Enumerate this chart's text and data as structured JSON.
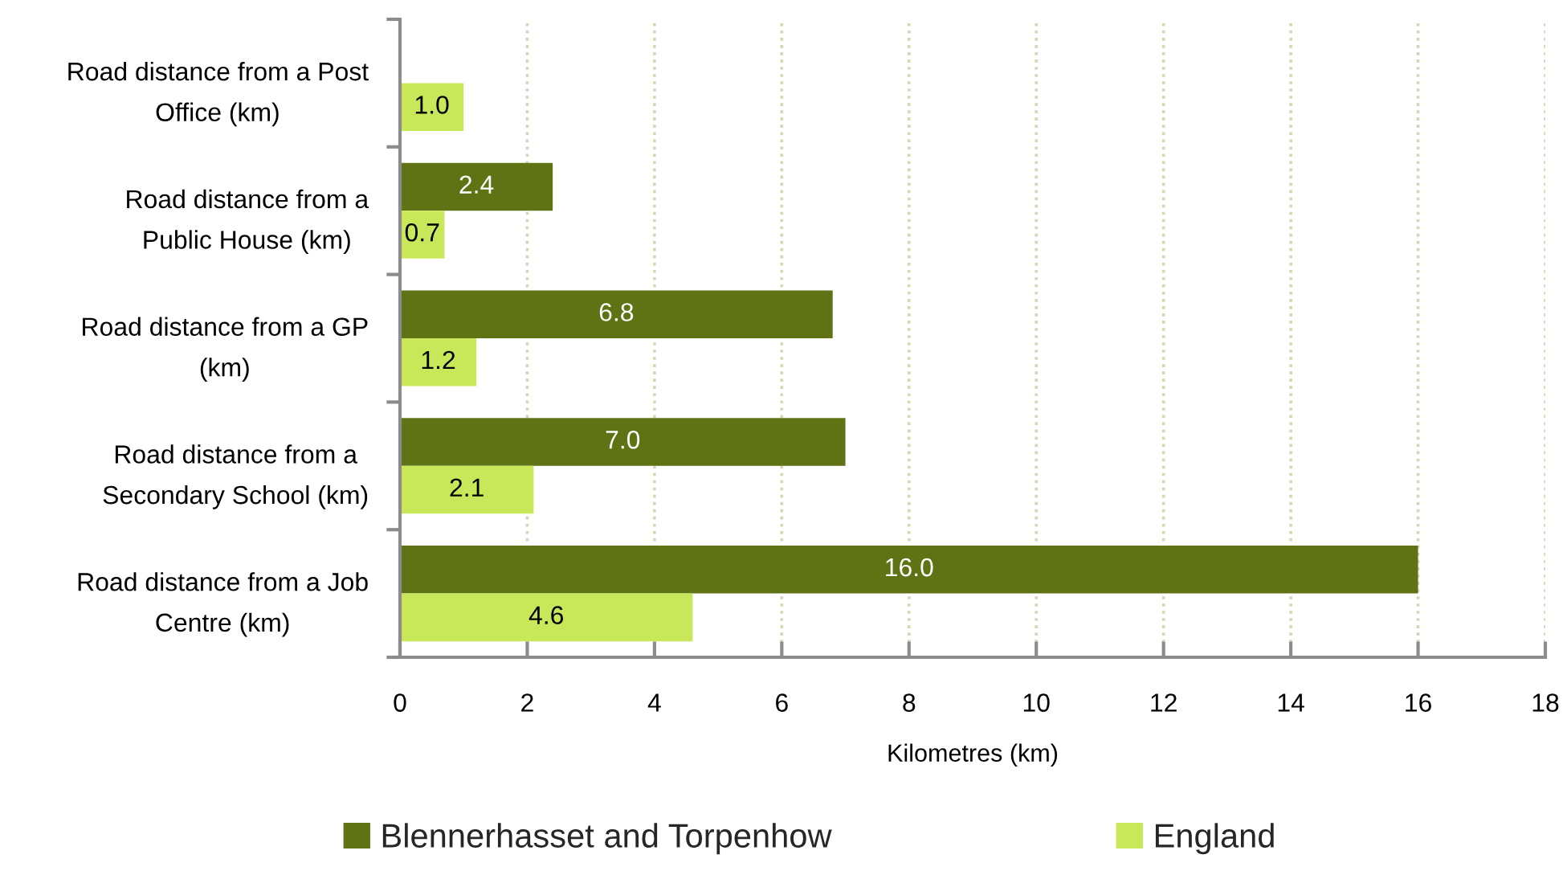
{
  "chart_data": {
    "type": "bar",
    "orientation": "horizontal",
    "categories": [
      "Road distance from a Post Office (km)",
      "Road distance from a Public House (km)",
      "Road distance from a GP (km)",
      "Road distance from a Secondary School (km)",
      "Road distance from a Job Centre (km)"
    ],
    "series": [
      {
        "name": "Blennerhasset and Torpenhow",
        "color": "#5f7314",
        "values": [
          null,
          2.4,
          6.8,
          7.0,
          16.0
        ],
        "value_labels": [
          null,
          "2.4",
          "6.8",
          "7.0",
          "16.0"
        ]
      },
      {
        "name": "England",
        "color": "#c8e85a",
        "values": [
          1.0,
          0.7,
          1.2,
          2.1,
          4.6
        ],
        "value_labels": [
          "1.0",
          "0.7",
          "1.2",
          "2.1",
          "4.6"
        ]
      }
    ],
    "xlabel": "Kilometres (km)",
    "xlim": [
      0,
      18
    ],
    "xticks": [
      0,
      2,
      4,
      6,
      8,
      10,
      12,
      14,
      16,
      18
    ],
    "grid": "x",
    "legend": "bottom"
  }
}
